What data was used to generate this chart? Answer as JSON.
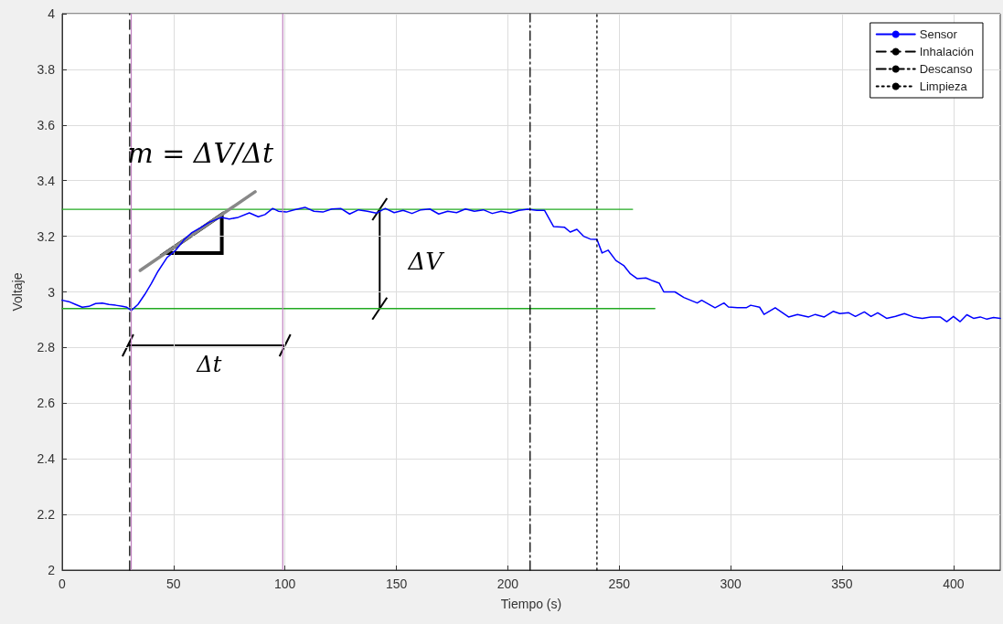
{
  "chart_data": {
    "type": "line",
    "xlabel": "Tiempo (s)",
    "ylabel": "Voltaje",
    "xlim": [
      0,
      421
    ],
    "xticks": [
      0,
      50,
      100,
      150,
      200,
      250,
      300,
      350,
      400
    ],
    "ylim": [
      2,
      4
    ],
    "yticks": [
      2,
      2.2,
      2.4,
      2.6,
      2.8,
      3,
      3.2,
      3.4,
      3.6,
      3.8,
      4
    ],
    "grid": true,
    "legend": "top right",
    "marker": "none",
    "series": [
      {
        "name": "Sensor",
        "color": "#0000ff",
        "line_style": "solid",
        "x": [
          0,
          3,
          6,
          9,
          12,
          15,
          18,
          21,
          24,
          27,
          29,
          31,
          34,
          37,
          40,
          43,
          47,
          51,
          55,
          58,
          62,
          66,
          71.5,
          75,
          79,
          84,
          88,
          91,
          94.5,
          97,
          100.6,
          104,
          109,
          113,
          117,
          121,
          125,
          129,
          133,
          137,
          141,
          145,
          149,
          153,
          157,
          161,
          165,
          169,
          173,
          177,
          181,
          185,
          189,
          193,
          197,
          201,
          205,
          209,
          213,
          216.5,
          220.5,
          225.5,
          228,
          231,
          234,
          237,
          240,
          242.3,
          245,
          248.5,
          252,
          255,
          258,
          262,
          265,
          268,
          270,
          275,
          279,
          285,
          287,
          293,
          297,
          299,
          303,
          307,
          309,
          313,
          315,
          320,
          326,
          330,
          335,
          338,
          342,
          346,
          349,
          353,
          356,
          360,
          363,
          366,
          370,
          374,
          378,
          382,
          386,
          390,
          394,
          397,
          400,
          403,
          406,
          409,
          412,
          415,
          418,
          421
        ],
        "values": [
          2.97,
          2.965,
          2.955,
          2.945,
          2.948,
          2.958,
          2.96,
          2.955,
          2.952,
          2.948,
          2.945,
          2.933,
          2.955,
          2.99,
          3.03,
          3.074,
          3.123,
          3.15,
          3.19,
          3.212,
          3.23,
          3.25,
          3.268,
          3.262,
          3.268,
          3.284,
          3.27,
          3.278,
          3.3,
          3.29,
          3.287,
          3.295,
          3.304,
          3.29,
          3.287,
          3.298,
          3.3,
          3.28,
          3.295,
          3.29,
          3.283,
          3.3,
          3.285,
          3.293,
          3.282,
          3.295,
          3.298,
          3.28,
          3.29,
          3.285,
          3.298,
          3.29,
          3.295,
          3.282,
          3.29,
          3.283,
          3.293,
          3.297,
          3.293,
          3.293,
          3.235,
          3.232,
          3.215,
          3.225,
          3.2,
          3.19,
          3.189,
          3.14,
          3.15,
          3.113,
          3.095,
          3.065,
          3.048,
          3.05,
          3.04,
          3.031,
          3,
          3,
          2.98,
          2.96,
          2.97,
          2.943,
          2.96,
          2.946,
          2.943,
          2.943,
          2.952,
          2.945,
          2.919,
          2.943,
          2.91,
          2.919,
          2.91,
          2.919,
          2.91,
          2.93,
          2.922,
          2.925,
          2.912,
          2.928,
          2.912,
          2.925,
          2.905,
          2.912,
          2.922,
          2.91,
          2.905,
          2.91,
          2.91,
          2.893,
          2.912,
          2.893,
          2.918,
          2.905,
          2.91,
          2.902,
          2.908,
          2.905
        ]
      },
      {
        "name": "Inhalación",
        "color": "#000000",
        "line_style": "dashed",
        "x": [
          30.3,
          30.3
        ],
        "values": [
          2,
          4
        ]
      },
      {
        "name": "Descanso",
        "color": "#000000",
        "line_style": "dashdot",
        "x": [
          210,
          210
        ],
        "values": [
          2,
          4
        ]
      },
      {
        "name": "Limpieza",
        "color": "#000000",
        "line_style": "dotted",
        "x": [
          240,
          240
        ],
        "values": [
          2,
          4
        ]
      },
      {
        "color": "#22aa22",
        "line_style": "solid",
        "x": [
          0,
          256
        ],
        "values": [
          3.297,
          3.297
        ]
      },
      {
        "color": "#22aa22",
        "line_style": "solid",
        "x": [
          0,
          266
        ],
        "values": [
          2.94,
          2.94
        ]
      },
      {
        "color": "#888888",
        "line_style": "solid",
        "x": [
          35,
          86.6
        ],
        "values": [
          3.077,
          3.36
        ]
      }
    ],
    "ref_lines": [
      {
        "axis": "x",
        "value": 31,
        "color": "#bf7fbf"
      },
      {
        "axis": "x",
        "value": 99,
        "color": "#bf7fbf"
      }
    ],
    "annotations": [
      "m = ΔV/Δt",
      "ΔV",
      "Δt"
    ]
  }
}
